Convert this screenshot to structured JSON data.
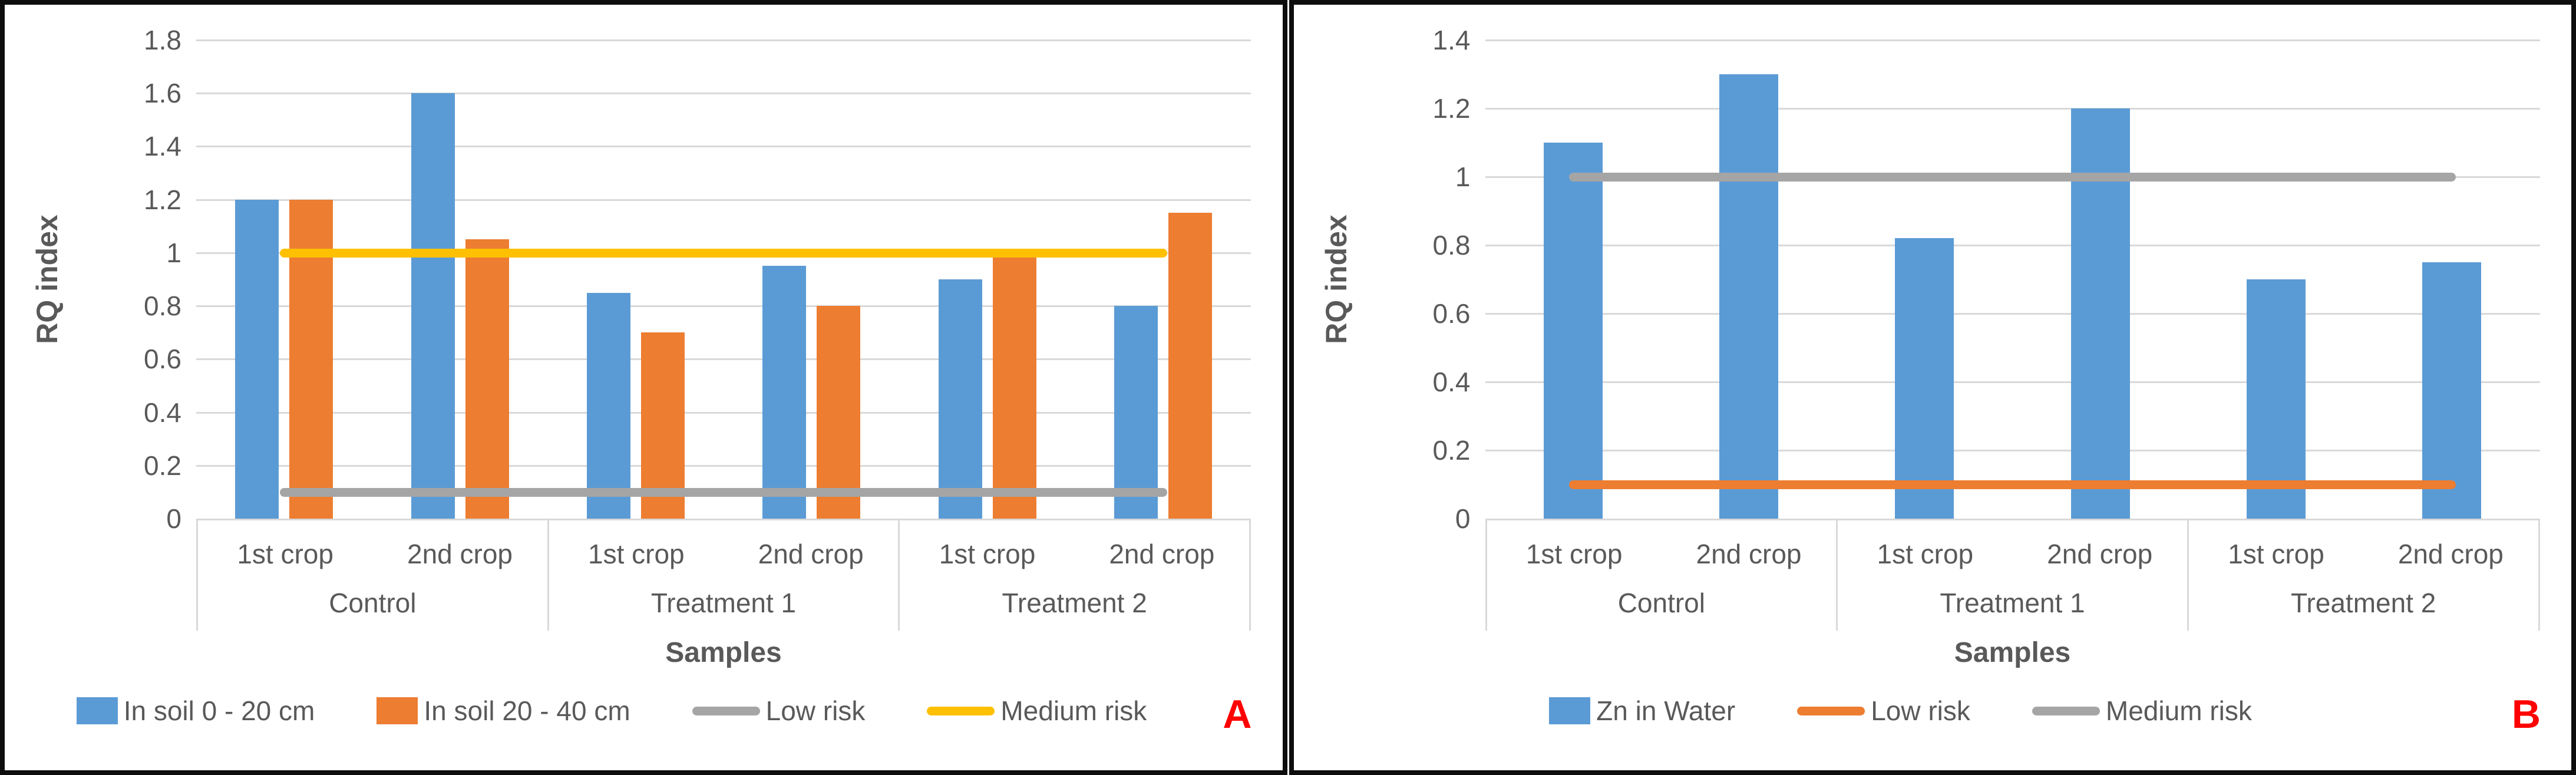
{
  "figure": {
    "description": "Two-panel risk quotient bar chart figure",
    "border_color": "#0d0d0d",
    "background": "#ffffff",
    "accent_red": "#ff0000",
    "grid_color": "#d9d9d9",
    "text_color": "#595959"
  },
  "chart_data": [
    {
      "type": "bar",
      "panel_label": "A",
      "title": "",
      "xlabel": "Samples",
      "ylabel": "RQ index",
      "ylim": [
        0,
        1.8
      ],
      "ytick_step": 0.2,
      "grid": true,
      "legend_position": "bottom",
      "groups": [
        "Control",
        "Treatment 1",
        "Treatment 2"
      ],
      "categories": [
        "1st crop",
        "2nd crop",
        "1st crop",
        "2nd crop",
        "1st crop",
        "2nd crop"
      ],
      "series": [
        {
          "name": "In soil 0 - 20 cm",
          "kind": "bar",
          "color": "#5B9BD5",
          "values": [
            1.2,
            1.6,
            0.85,
            0.95,
            0.9,
            0.8
          ]
        },
        {
          "name": "In soil 20 - 40 cm",
          "kind": "bar",
          "color": "#ED7D31",
          "values": [
            1.2,
            1.05,
            0.7,
            0.8,
            0.99,
            1.15
          ]
        },
        {
          "name": "Low risk",
          "kind": "line",
          "color": "#A5A5A5",
          "value": 0.1
        },
        {
          "name": "Medium risk",
          "kind": "line",
          "color": "#FFC000",
          "value": 1.0
        }
      ]
    },
    {
      "type": "bar",
      "panel_label": "B",
      "title": "",
      "xlabel": "Samples",
      "ylabel": "RQ index",
      "ylim": [
        0,
        1.4
      ],
      "ytick_step": 0.2,
      "grid": true,
      "legend_position": "bottom",
      "groups": [
        "Control",
        "Treatment 1",
        "Treatment 2"
      ],
      "categories": [
        "1st crop",
        "2nd crop",
        "1st crop",
        "2nd crop",
        "1st crop",
        "2nd crop"
      ],
      "series": [
        {
          "name": "Zn in Water",
          "kind": "bar",
          "color": "#5B9BD5",
          "values": [
            1.1,
            1.3,
            0.82,
            1.2,
            0.7,
            0.75
          ]
        },
        {
          "name": "Low risk",
          "kind": "line",
          "color": "#ED7D31",
          "value": 0.1
        },
        {
          "name": "Medium risk",
          "kind": "line",
          "color": "#A5A5A5",
          "value": 1.0
        }
      ]
    }
  ]
}
